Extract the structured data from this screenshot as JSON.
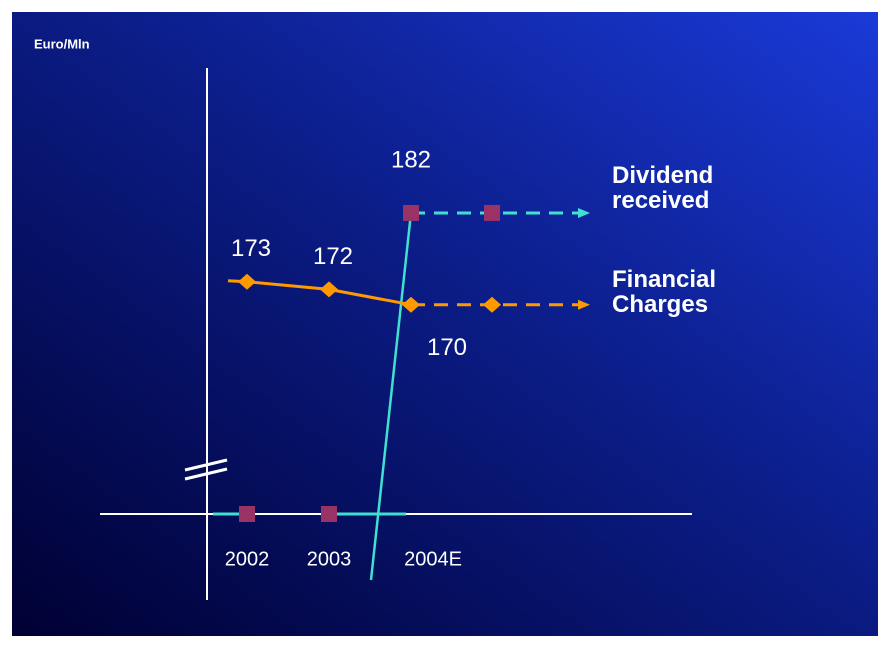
{
  "chart_data": {
    "type": "line",
    "ylabel": "Euro/Mln",
    "categories": [
      "2002",
      "2003",
      "2004E"
    ],
    "series": [
      {
        "name": "Dividend received",
        "color": "#40e0d0",
        "marker_color": "#993366",
        "values": [
          0,
          0,
          182
        ]
      },
      {
        "name": "Financial Charges",
        "color": "#ff9900",
        "marker_color": "#ff9900",
        "values": [
          173,
          172,
          170
        ]
      }
    ],
    "ylim": [
      0,
      185
    ],
    "y_break": [
      0,
      168
    ]
  }
}
